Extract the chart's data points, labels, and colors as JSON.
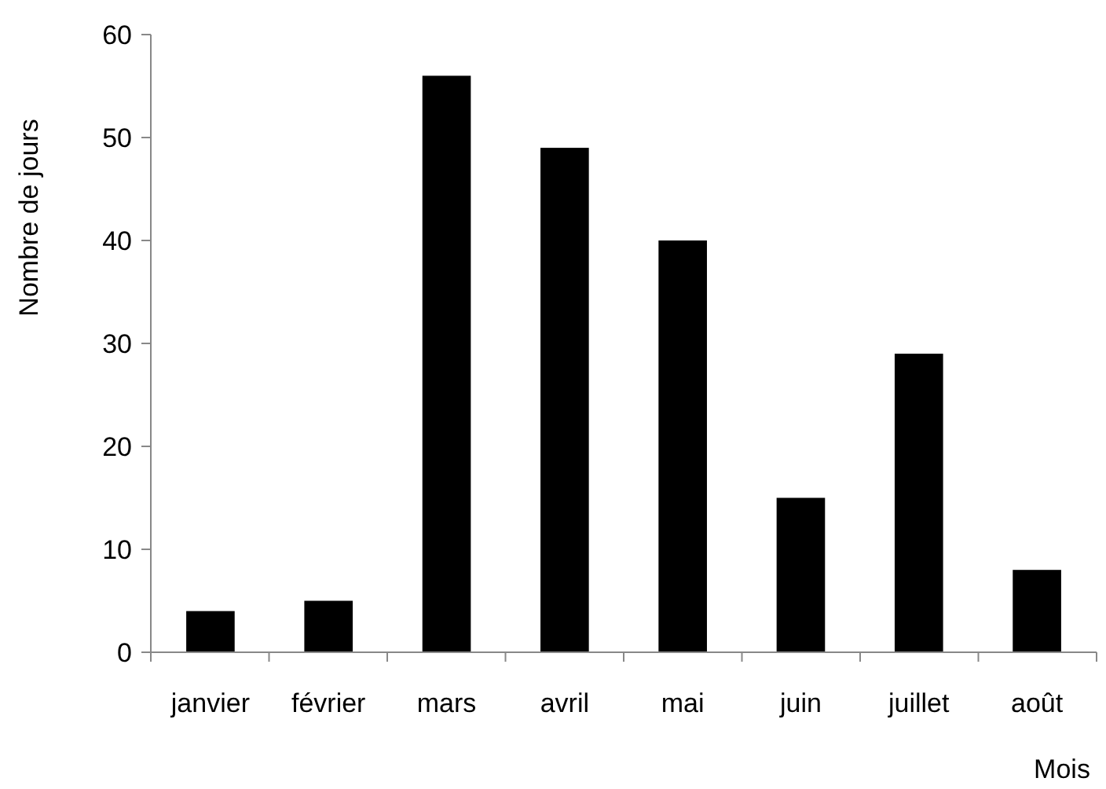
{
  "chart_data": {
    "type": "bar",
    "xlabel": "Mois",
    "ylabel": "Nombre de jours",
    "categories": [
      "janvier",
      "février",
      "mars",
      "avril",
      "mai",
      "juin",
      "juillet",
      "août"
    ],
    "values": [
      4,
      5,
      56,
      49,
      40,
      15,
      29,
      8
    ],
    "color": "#000000",
    "ylim": [
      0,
      60
    ],
    "yticks": [
      0,
      10,
      20,
      30,
      40,
      50,
      60
    ],
    "grid": false
  }
}
